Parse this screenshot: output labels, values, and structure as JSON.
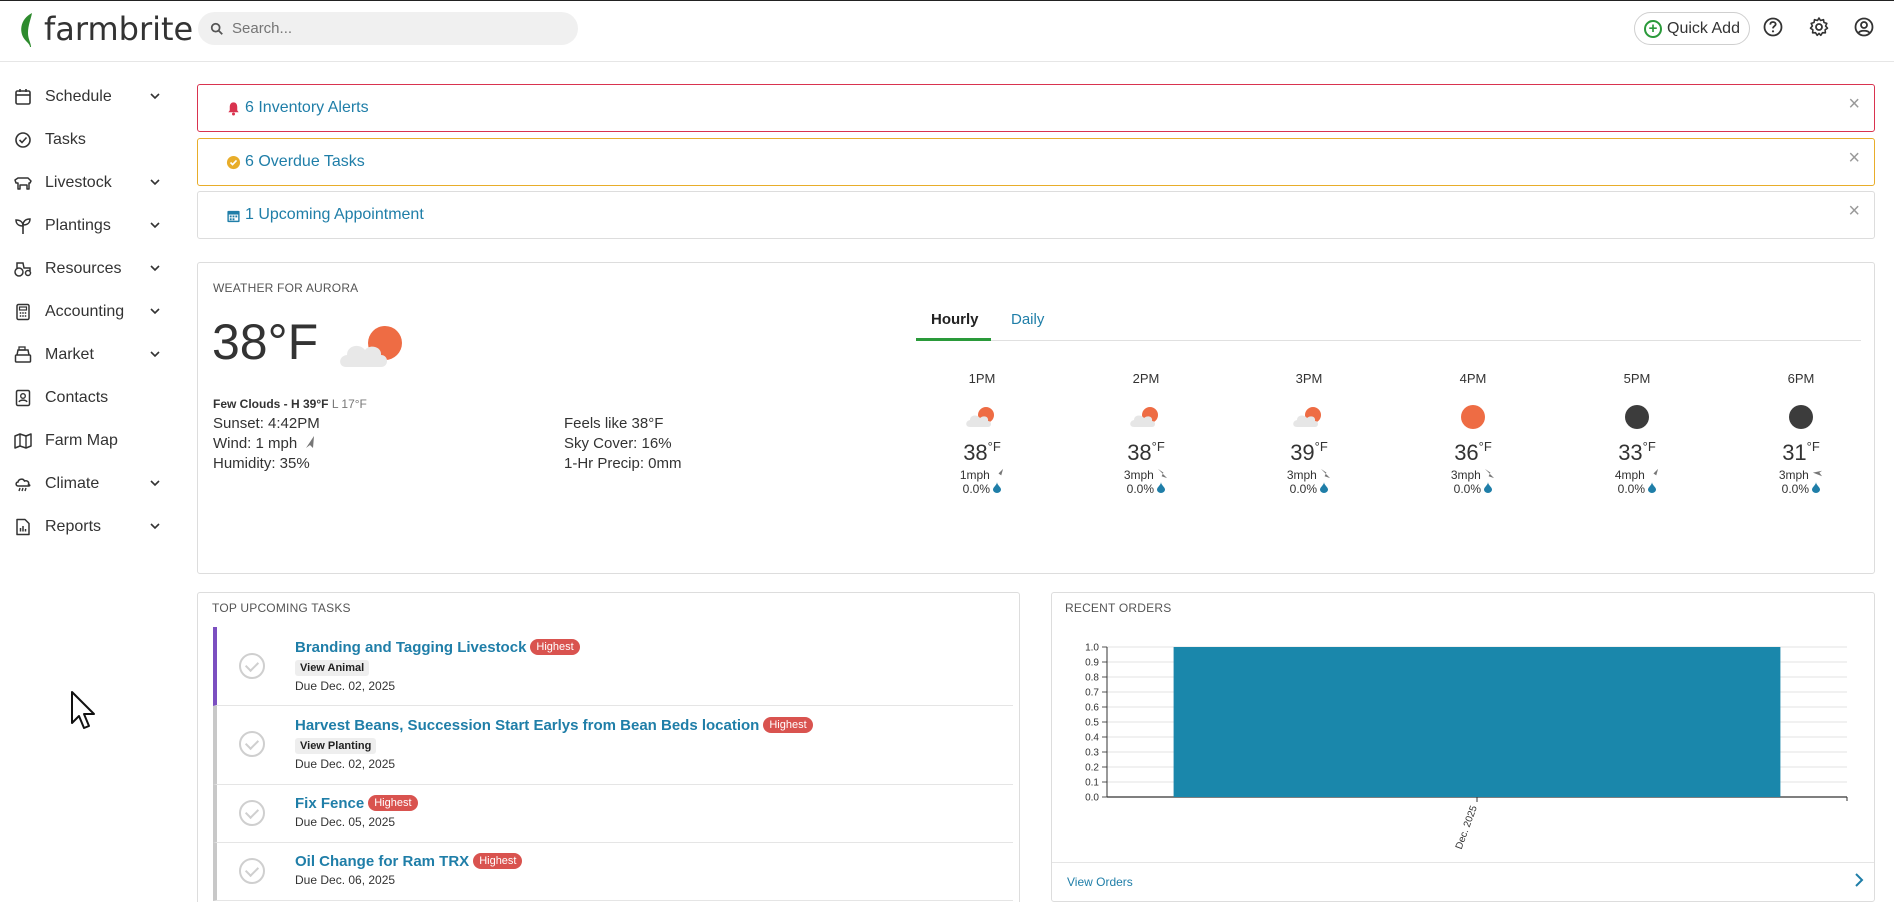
{
  "header": {
    "brand": "farmbrite",
    "search_placeholder": "Search...",
    "quick_add_label": "Quick Add"
  },
  "sidebar": {
    "items": [
      {
        "label": "Schedule",
        "icon": "calendar-icon",
        "expandable": true
      },
      {
        "label": "Tasks",
        "icon": "check-circle-icon",
        "expandable": false
      },
      {
        "label": "Livestock",
        "icon": "livestock-icon",
        "expandable": true
      },
      {
        "label": "Plantings",
        "icon": "seedling-icon",
        "expandable": true
      },
      {
        "label": "Resources",
        "icon": "tractor-icon",
        "expandable": true
      },
      {
        "label": "Accounting",
        "icon": "calculator-icon",
        "expandable": true
      },
      {
        "label": "Market",
        "icon": "cash-register-icon",
        "expandable": true
      },
      {
        "label": "Contacts",
        "icon": "contact-card-icon",
        "expandable": false
      },
      {
        "label": "Farm Map",
        "icon": "map-icon",
        "expandable": false
      },
      {
        "label": "Climate",
        "icon": "cloud-rain-icon",
        "expandable": true
      },
      {
        "label": "Reports",
        "icon": "report-icon",
        "expandable": true
      }
    ]
  },
  "alerts": [
    {
      "text": "6 Inventory Alerts",
      "icon": "bell-icon",
      "color": "#d9334f"
    },
    {
      "text": "6 Overdue Tasks",
      "icon": "check-circle-icon",
      "color": "#e8ad2a"
    },
    {
      "text": "1 Upcoming Appointment",
      "icon": "calendar-icon",
      "color": "#1f7ea8"
    }
  ],
  "weather": {
    "title": "WEATHER FOR AURORA",
    "temp": "38°F",
    "condition": "Few Clouds - H 39°F",
    "low": "L 17°F",
    "sunset": "Sunset: 4:42PM",
    "wind": "Wind: 1 mph",
    "humidity": "Humidity: 35%",
    "feels_like": "Feels like 38°F",
    "sky_cover": "Sky Cover: 16%",
    "precip": "1-Hr Precip: 0mm",
    "tabs": [
      "Hourly",
      "Daily"
    ],
    "hourly": [
      {
        "time": "1PM",
        "temp": "38",
        "wind": "1mph",
        "precip": "0.0%",
        "icon": "partly-cloudy-icon"
      },
      {
        "time": "2PM",
        "temp": "38",
        "wind": "3mph",
        "precip": "0.0%",
        "icon": "partly-cloudy-icon"
      },
      {
        "time": "3PM",
        "temp": "39",
        "wind": "3mph",
        "precip": "0.0%",
        "icon": "partly-cloudy-icon"
      },
      {
        "time": "4PM",
        "temp": "36",
        "wind": "3mph",
        "precip": "0.0%",
        "icon": "sun-icon"
      },
      {
        "time": "5PM",
        "temp": "33",
        "wind": "4mph",
        "precip": "0.0%",
        "icon": "moon-icon"
      },
      {
        "time": "6PM",
        "temp": "31",
        "wind": "3mph",
        "precip": "0.0%",
        "icon": "moon-icon"
      }
    ],
    "unit": "°F"
  },
  "tasks": {
    "title": "TOP UPCOMING TASKS",
    "items": [
      {
        "name": "Branding and Tagging Livestock",
        "priority": "Highest",
        "link": "View Animal",
        "due": "Due Dec. 02, 2025"
      },
      {
        "name": "Harvest Beans, Succession Start Earlys from Bean Beds location",
        "priority": "Highest",
        "link": "View Planting",
        "due": "Due Dec. 02, 2025"
      },
      {
        "name": "Fix Fence",
        "priority": "Highest",
        "link": "",
        "due": "Due Dec. 05, 2025"
      },
      {
        "name": "Oil Change for Ram TRX",
        "priority": "Highest",
        "link": "",
        "due": "Due Dec. 06, 2025"
      }
    ]
  },
  "orders": {
    "title": "RECENT ORDERS",
    "footer_link": "View Orders"
  },
  "chart_data": {
    "type": "bar",
    "categories": [
      "Dec. 2025"
    ],
    "values": [
      1.0
    ],
    "ylim": [
      0,
      1.0
    ],
    "yticks": [
      "0.0",
      "0.1",
      "0.2",
      "0.3",
      "0.4",
      "0.5",
      "0.6",
      "0.7",
      "0.8",
      "0.9",
      "1.0"
    ],
    "color": "#1a87ab",
    "grid": true
  }
}
